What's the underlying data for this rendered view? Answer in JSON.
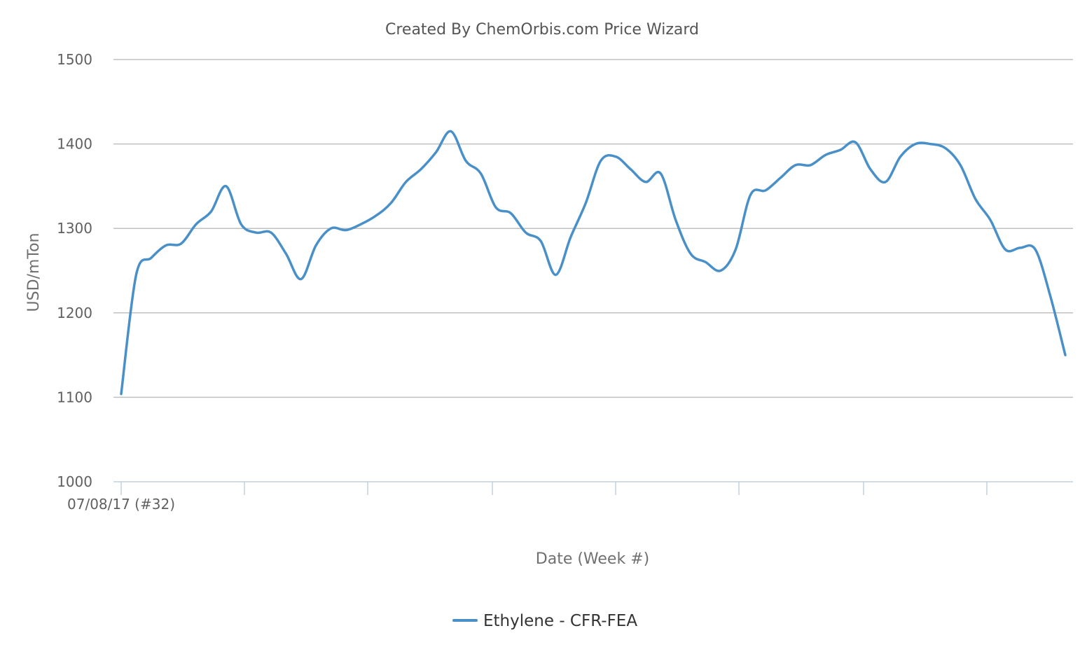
{
  "chart_data": {
    "type": "line",
    "title": "Created By ChemOrbis.com Price Wizard",
    "xlabel": "Date (Week #)",
    "ylabel": "USD/mTon",
    "ylim": [
      1000,
      1500
    ],
    "y_ticks": [
      1000,
      1100,
      1200,
      1300,
      1400,
      1500
    ],
    "x_tick_labels": [
      "07/08/17 (#32)"
    ],
    "grid": true,
    "legend": "bottom-center",
    "series": [
      {
        "name": "Ethylene - CFR-FEA",
        "color": "#4a90c8",
        "values": [
          1104,
          1245,
          1265,
          1280,
          1282,
          1305,
          1320,
          1350,
          1305,
          1295,
          1295,
          1270,
          1240,
          1280,
          1300,
          1298,
          1305,
          1315,
          1330,
          1355,
          1370,
          1390,
          1415,
          1380,
          1365,
          1325,
          1318,
          1295,
          1285,
          1245,
          1290,
          1330,
          1380,
          1385,
          1370,
          1355,
          1365,
          1310,
          1270,
          1260,
          1250,
          1275,
          1340,
          1345,
          1360,
          1375,
          1375,
          1387,
          1393,
          1402,
          1370,
          1355,
          1385,
          1400,
          1400,
          1395,
          1375,
          1335,
          1310,
          1275,
          1277,
          1275,
          1220,
          1150
        ]
      }
    ]
  }
}
